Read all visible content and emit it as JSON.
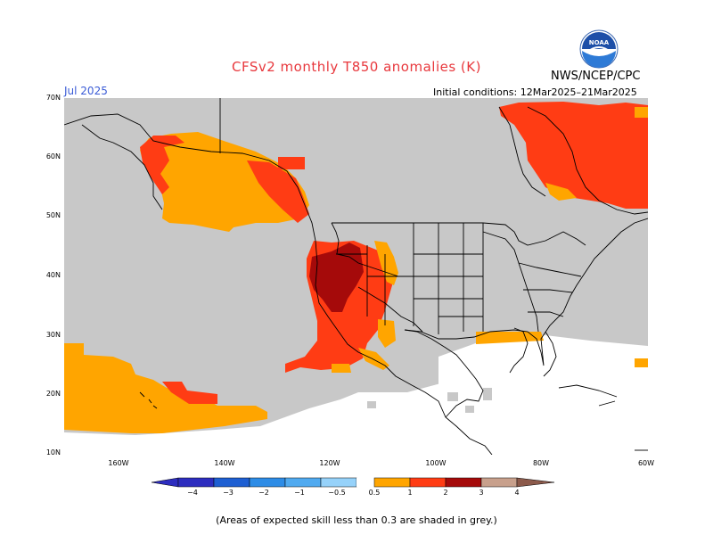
{
  "header": {
    "title": "CFSv2 monthly T850 anomalies (K)",
    "org": "NWS/NCEP/CPC",
    "logo_text": "NOAA",
    "month": "Jul 2025",
    "initial_conditions": "Initial conditions: 12Mar2025–21Mar2025"
  },
  "map": {
    "lat_labels": [
      "70N",
      "60N",
      "50N",
      "40N",
      "30N",
      "20N",
      "10N"
    ],
    "lon_labels": [
      "160W",
      "140W",
      "120W",
      "100W",
      "80W",
      "60W"
    ],
    "colors": {
      "grey_low_skill": "#c8c8c8",
      "ocean_white": "#ffffff",
      "orange_0_5_1": "#ffa500",
      "red_orange_1_2": "#ff3c14",
      "dark_red_2_3": "#a50a0a"
    }
  },
  "colorbar": {
    "labels": [
      "−4",
      "−3",
      "−2",
      "−1",
      "−0.5",
      "0.5",
      "1",
      "2",
      "3",
      "4"
    ],
    "colors": [
      "#2d2dbf",
      "#1e5fd2",
      "#2d8ce6",
      "#50aaf0",
      "#96d2fa",
      "#ffffff",
      "#ffa500",
      "#ff3c14",
      "#a50a0a",
      "#c8a08c"
    ]
  },
  "footnote": "(Areas of expected skill less than 0.3 are shaded in grey.)"
}
